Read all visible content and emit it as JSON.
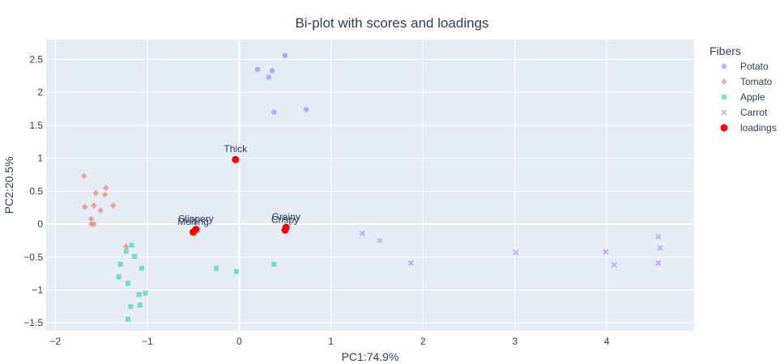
{
  "chart_data": {
    "type": "scatter",
    "title": "Bi-plot with scores and loadings",
    "xlabel": "PC1:74.9%",
    "ylabel": "PC2:20.5%",
    "xlim": [
      -2.1,
      4.95
    ],
    "ylim": [
      -1.62,
      2.8
    ],
    "xticks": [
      -2,
      -1,
      0,
      1,
      2,
      3,
      4
    ],
    "yticks": [
      -1.5,
      -1,
      -0.5,
      0,
      0.5,
      1,
      1.5,
      2,
      2.5
    ],
    "ytick_labels": [
      "−1.5",
      "−1",
      "−0.5",
      "0",
      "0.5",
      "1",
      "1.5",
      "2",
      "2.5"
    ],
    "xtick_labels": [
      "−2",
      "−1",
      "0",
      "1",
      "2",
      "3",
      "4"
    ],
    "legend_title": "Fibers",
    "legend_position": "top-right",
    "series": [
      {
        "name": "Potato",
        "marker": "circle",
        "color": "#636efa",
        "points": [
          [
            0.2,
            2.35
          ],
          [
            0.36,
            2.33
          ],
          [
            0.5,
            2.56
          ],
          [
            0.32,
            2.23
          ],
          [
            0.38,
            1.7
          ],
          [
            0.73,
            1.74
          ]
        ]
      },
      {
        "name": "Tomato",
        "marker": "diamond",
        "color": "#ef553b",
        "points": [
          [
            -1.69,
            0.73
          ],
          [
            -1.45,
            0.55
          ],
          [
            -1.56,
            0.47
          ],
          [
            -1.46,
            0.45
          ],
          [
            -1.68,
            0.26
          ],
          [
            -1.58,
            0.28
          ],
          [
            -1.37,
            0.28
          ],
          [
            -1.51,
            0.21
          ],
          [
            -1.61,
            0.08
          ],
          [
            -1.61,
            0.0
          ],
          [
            -1.58,
            0.0
          ],
          [
            -1.23,
            -0.34
          ]
        ]
      },
      {
        "name": "Apple",
        "marker": "square",
        "color": "#00cc96",
        "points": [
          [
            -1.17,
            -0.32
          ],
          [
            -1.23,
            -0.41
          ],
          [
            -1.14,
            -0.49
          ],
          [
            -1.29,
            -0.61
          ],
          [
            -1.06,
            -0.67
          ],
          [
            -1.31,
            -0.8
          ],
          [
            -1.21,
            -0.9
          ],
          [
            -1.02,
            -1.05
          ],
          [
            -1.09,
            -1.07
          ],
          [
            -1.08,
            -1.23
          ],
          [
            -1.18,
            -1.25
          ],
          [
            -1.21,
            -1.44
          ],
          [
            -0.25,
            -0.67
          ],
          [
            -0.03,
            -0.72
          ],
          [
            0.38,
            -0.61
          ]
        ]
      },
      {
        "name": "Carrot",
        "marker": "x",
        "color": "#ab63fa",
        "points": [
          [
            1.34,
            -0.14
          ],
          [
            1.53,
            -0.25
          ],
          [
            1.87,
            -0.59
          ],
          [
            3.01,
            -0.43
          ],
          [
            3.99,
            -0.42
          ],
          [
            4.08,
            -0.62
          ],
          [
            4.56,
            -0.19
          ],
          [
            4.58,
            -0.36
          ],
          [
            4.56,
            -0.59
          ]
        ]
      },
      {
        "name": "loadings",
        "marker": "circle",
        "color": "#ff0000",
        "points": [
          [
            -0.04,
            0.98
          ],
          [
            -0.47,
            -0.08
          ],
          [
            -0.5,
            -0.12
          ],
          [
            0.51,
            -0.05
          ],
          [
            0.5,
            -0.09
          ]
        ],
        "labels": [
          "Thick",
          "Slippery",
          "Melting",
          "Grainy",
          "Crispy"
        ]
      }
    ]
  }
}
